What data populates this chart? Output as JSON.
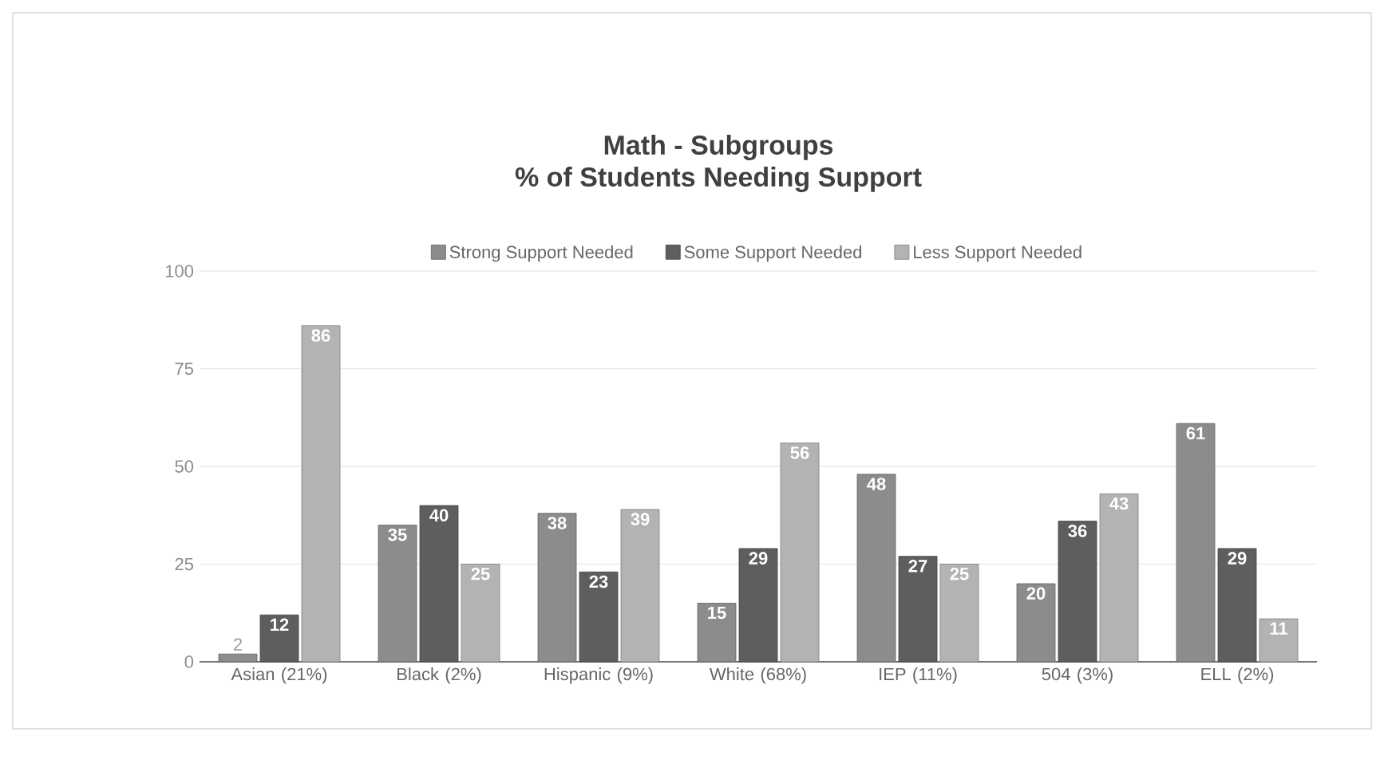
{
  "chart_data": {
    "type": "bar",
    "title": "Math - Subgroups",
    "subtitle": "% of Students Needing Support",
    "categories": [
      "Asian (21%)",
      "Black (2%)",
      "Hispanic (9%)",
      "White (68%)",
      "IEP (11%)",
      "504 (3%)",
      "ELL (2%)"
    ],
    "series": [
      {
        "name": "Strong Support Needed",
        "color": "#8c8c8c",
        "values": [
          2,
          35,
          38,
          15,
          48,
          20,
          61
        ]
      },
      {
        "name": "Some Support Needed",
        "color": "#5e5e5e",
        "values": [
          12,
          40,
          23,
          29,
          27,
          36,
          29
        ]
      },
      {
        "name": "Less Support Needed",
        "color": "#b3b3b3",
        "values": [
          86,
          25,
          39,
          56,
          25,
          43,
          11
        ]
      }
    ],
    "ylim": [
      0,
      100
    ],
    "yticks": [
      0,
      25,
      50,
      75,
      100
    ],
    "grid": "y",
    "legend": "top",
    "data_labels": true
  }
}
